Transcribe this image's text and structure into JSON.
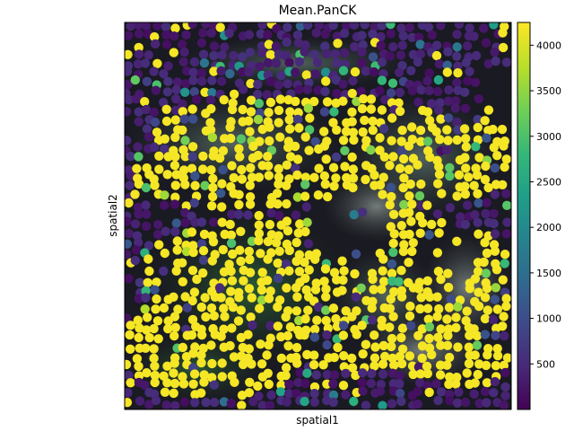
{
  "chart_data": {
    "type": "scatter",
    "title": "Mean.PanCK",
    "xlabel": "spatial1",
    "ylabel": "spatial2",
    "x_ticks": false,
    "y_ticks": false,
    "colorbar": {
      "min": 0,
      "max": 4250,
      "ticks": [
        500,
        1000,
        1500,
        2000,
        2500,
        3000,
        3500,
        4000
      ],
      "tick_labels": [
        "500",
        "1000",
        "1500",
        "2000",
        "2500",
        "3000",
        "3500",
        "4000"
      ],
      "colormap": "viridis"
    },
    "background": "tissue immunofluorescence image (dark, with green/white stromal signal)",
    "value_distribution": {
      "high_value": 4200,
      "low_value": 150,
      "description": "High PanCK cells (yellow) concentrated in central epithelial bands; low PanCK cells (purple) in upper and left regions"
    }
  },
  "colors": {
    "viridis": [
      "#440154",
      "#482878",
      "#3e4989",
      "#31688e",
      "#26828e",
      "#1f9e89",
      "#35b779",
      "#6ece58",
      "#b5de2b",
      "#fde725"
    ],
    "high": "#fde725",
    "low": "#46085c",
    "axis": "#000000"
  }
}
